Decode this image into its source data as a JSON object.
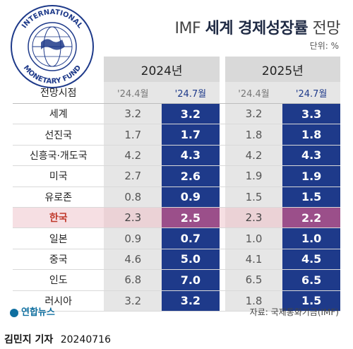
{
  "header": {
    "title_light": "IMF",
    "title_bold": "세계 경제성장률",
    "title_suffix": "전망",
    "unit": "단위: %"
  },
  "seal": {
    "text_top": "INTERNATIONAL",
    "text_bottom": "MONETARY FUND"
  },
  "table": {
    "corner_label": "전망시점",
    "years": [
      "2024년",
      "2025년"
    ],
    "subheads": [
      "'24.4월",
      "'24.7월",
      "'24.4월",
      "'24.7월"
    ],
    "rows": [
      {
        "label": "세계",
        "v": [
          "3.2",
          "3.2",
          "3.2",
          "3.3"
        ]
      },
      {
        "label": "선진국",
        "v": [
          "1.7",
          "1.7",
          "1.8",
          "1.8"
        ]
      },
      {
        "label": "신흥국·개도국",
        "v": [
          "4.2",
          "4.3",
          "4.2",
          "4.3"
        ]
      },
      {
        "label": "미국",
        "v": [
          "2.7",
          "2.6",
          "1.9",
          "1.9"
        ]
      },
      {
        "label": "유로존",
        "v": [
          "0.8",
          "0.9",
          "1.5",
          "1.5"
        ]
      },
      {
        "label": "한국",
        "v": [
          "2.3",
          "2.5",
          "2.3",
          "2.2"
        ]
      },
      {
        "label": "일본",
        "v": [
          "0.9",
          "0.7",
          "1.0",
          "1.0"
        ]
      },
      {
        "label": "중국",
        "v": [
          "4.6",
          "5.0",
          "4.1",
          "4.5"
        ]
      },
      {
        "label": "인도",
        "v": [
          "6.8",
          "7.0",
          "6.5",
          "6.5"
        ]
      },
      {
        "label": "러시아",
        "v": [
          "3.2",
          "3.2",
          "1.8",
          "1.5"
        ]
      }
    ]
  },
  "footer": {
    "logo": "연합뉴스",
    "source": "자료: 국제통화기금(IMF)",
    "reporter": "김민지 기자",
    "date": "20240716"
  },
  "colors": {
    "blue": "#1e3a8a",
    "korea_highlight": "#9b4f8a",
    "korea_row": "#f6dfe3"
  }
}
